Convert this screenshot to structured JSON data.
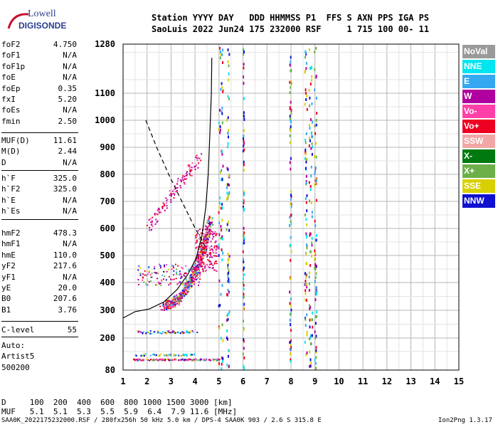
{
  "logo": {
    "line1": "Lowell",
    "line2": "DIGISONDE"
  },
  "header": {
    "line1": "Station YYYY DAY   DDD HHMMSS P1  FFS S AXN PPS IGA PS",
    "line2": "SaoLuis 2022 Jun24 175 232000 RSF     1 715 100 00- 11"
  },
  "params": {
    "group1": [
      {
        "k": "foF2",
        "v": "4.750"
      },
      {
        "k": "foF1",
        "v": "N/A"
      },
      {
        "k": "foF1p",
        "v": "N/A"
      },
      {
        "k": "foE",
        "v": "N/A"
      },
      {
        "k": "foEp",
        "v": "0.35"
      },
      {
        "k": "fxI",
        "v": "5.20"
      },
      {
        "k": "foEs",
        "v": "N/A"
      },
      {
        "k": "fmin",
        "v": "2.50"
      }
    ],
    "group2": [
      {
        "k": "MUF(D)",
        "v": "11.61"
      },
      {
        "k": "M(D)",
        "v": "2.44"
      },
      {
        "k": "D",
        "v": "N/A"
      }
    ],
    "group3": [
      {
        "k": "h`F",
        "v": "325.0"
      },
      {
        "k": "h`F2",
        "v": "325.0"
      },
      {
        "k": "h`E",
        "v": "N/A"
      },
      {
        "k": "h`Es",
        "v": "N/A"
      }
    ],
    "group4": [
      {
        "k": "hmF2",
        "v": "478.3"
      },
      {
        "k": "hmF1",
        "v": "N/A"
      },
      {
        "k": "hmE",
        "v": "110.0"
      },
      {
        "k": "yF2",
        "v": "217.6"
      },
      {
        "k": "yF1",
        "v": "N/A"
      },
      {
        "k": "yE",
        "v": "20.0"
      },
      {
        "k": "B0",
        "v": "207.6"
      },
      {
        "k": "B1",
        "v": "3.76"
      }
    ],
    "group5": [
      {
        "k": "C-level",
        "v": "55"
      }
    ],
    "auto": [
      "Auto:",
      "Artist5",
      "500200"
    ]
  },
  "legend": [
    {
      "label": "NoVal",
      "color": "#9a9a9a"
    },
    {
      "label": "NNE",
      "color": "#00e5f0"
    },
    {
      "label": "E",
      "color": "#36a8f2"
    },
    {
      "label": "W",
      "color": "#b0009f"
    },
    {
      "label": "Vo-",
      "color": "#ff40a8"
    },
    {
      "label": "Vo+",
      "color": "#ee0022"
    },
    {
      "label": "SSW",
      "color": "#f2a6a6"
    },
    {
      "label": "X-",
      "color": "#007a10"
    },
    {
      "label": "X+",
      "color": "#6db04a"
    },
    {
      "label": "SSE",
      "color": "#d8d000"
    },
    {
      "label": "NNW",
      "color": "#1010d0"
    }
  ],
  "footer": {
    "line1": "D     100  200  400  600  800 1000 1500 3000 [km]",
    "line2": "MUF   5.1  5.1  5.3  5.5  5.9  6.4  7.9 11.6 [MHz]",
    "left": "SAA0K_2022175232000.RSF / 280fx256h 50 kHz 5.0 km / DPS-4 SAA0K 903 / 2.6 S 315.8 E",
    "right": "Ion2Png 1.3.17"
  },
  "chart_data": {
    "type": "scatter",
    "xlim": [
      1,
      15
    ],
    "ylim": [
      80,
      1280
    ],
    "x_ticks": [
      "1",
      "2",
      "3",
      "4",
      "5",
      "6",
      "7",
      "8",
      "9",
      "10",
      "11",
      "12",
      "13",
      "14",
      "15"
    ],
    "y_ticks": [
      "80",
      "200",
      "300",
      "400",
      "500",
      "600",
      "700",
      "800",
      "900",
      "1000",
      "1100",
      "1280"
    ],
    "grid": true,
    "profile_curve": [
      [
        4.7,
        1230
      ],
      [
        4.68,
        1100
      ],
      [
        4.62,
        950
      ],
      [
        4.55,
        800
      ],
      [
        4.45,
        680
      ],
      [
        4.3,
        580
      ],
      [
        4.05,
        490
      ],
      [
        3.7,
        430
      ],
      [
        3.25,
        375
      ],
      [
        2.7,
        330
      ],
      [
        2.1,
        305
      ],
      [
        1.5,
        295
      ],
      [
        1.0,
        272
      ]
    ],
    "x_trace_dashed": [
      [
        1.95,
        1000
      ],
      [
        2.4,
        900
      ],
      [
        2.9,
        800
      ],
      [
        3.45,
        700
      ],
      [
        3.95,
        610
      ],
      [
        4.5,
        520
      ]
    ]
  }
}
